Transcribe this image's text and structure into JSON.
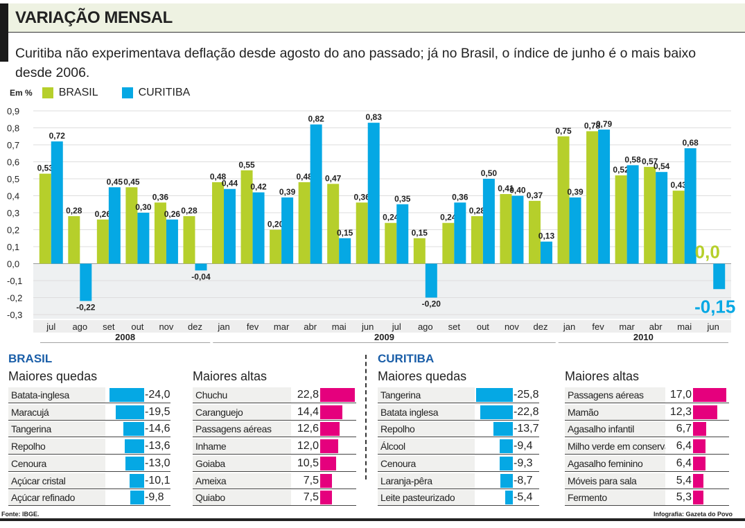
{
  "header": {
    "title": "VARIAÇÃO MENSAL",
    "subtitle": "Curitiba não experimentava deflação desde agosto do ano passado; já no Brasil, o índice de junho é o mais baixo desde 2006."
  },
  "colors": {
    "brasil": "#b6cf2b",
    "curitiba": "#05a8e4",
    "altas": "#e5007d",
    "negative_bg": "#eef0f1",
    "title_blue": "#1a5ea8"
  },
  "chart_data": {
    "type": "bar",
    "unit": "Em %",
    "ylim": [
      -0.3,
      0.9
    ],
    "yticks": [
      "0,9",
      "0,8",
      "0,7",
      "0,6",
      "0,5",
      "0,4",
      "0,3",
      "0,2",
      "0,1",
      "0,0",
      "-0,1",
      "-0,2",
      "-0,3"
    ],
    "ytick_values": [
      0.9,
      0.8,
      0.7,
      0.6,
      0.5,
      0.4,
      0.3,
      0.2,
      0.1,
      0.0,
      -0.1,
      -0.2,
      -0.3
    ],
    "categories": [
      "jul",
      "ago",
      "set",
      "out",
      "nov",
      "dez",
      "jan",
      "fev",
      "mar",
      "abr",
      "mai",
      "jun",
      "jul",
      "ago",
      "set",
      "out",
      "nov",
      "dez",
      "jan",
      "fev",
      "mar",
      "abr",
      "mai",
      "jun"
    ],
    "years": [
      {
        "label": "2008",
        "months": 6
      },
      {
        "label": "2009",
        "months": 12
      },
      {
        "label": "2010",
        "months": 6
      }
    ],
    "legend": [
      "BRASIL",
      "CURITIBA"
    ],
    "series": [
      {
        "name": "BRASIL",
        "values": [
          0.53,
          0.28,
          0.26,
          0.45,
          0.36,
          0.28,
          0.48,
          0.55,
          0.2,
          0.48,
          0.47,
          0.36,
          0.24,
          0.15,
          0.24,
          0.28,
          0.41,
          0.37,
          0.75,
          0.78,
          0.52,
          0.57,
          0.43,
          0.0
        ],
        "labels": [
          "0,53",
          "0,28",
          "0,26",
          "0,45",
          "0,36",
          "0,28",
          "0,48",
          "0,55",
          "0,20",
          "0,48",
          "0,47",
          "0,36",
          "0,24",
          "0,15",
          "0,24",
          "0,28",
          "0,41",
          "0,37",
          "0,75",
          "0,78",
          "0,52",
          "0,57",
          "0,43",
          "0,0"
        ]
      },
      {
        "name": "CURITIBA",
        "values": [
          0.72,
          -0.22,
          0.45,
          0.3,
          0.26,
          -0.04,
          0.44,
          0.42,
          0.39,
          0.82,
          0.15,
          0.83,
          0.35,
          -0.2,
          0.36,
          0.5,
          0.4,
          0.13,
          0.39,
          0.79,
          0.58,
          0.54,
          0.68,
          -0.15
        ],
        "labels": [
          "0,72",
          "-0,22",
          "0,45",
          "0,30",
          "0,26",
          "-0,04",
          "0,44",
          "0,42",
          "0,39",
          "0,82",
          "0,15",
          "0,83",
          "0,35",
          "-0,20",
          "0,36",
          "0,50",
          "0,40",
          "0,13",
          "0,39",
          "0,79",
          "0,58",
          "0,54",
          "0,68",
          "-0,15"
        ]
      }
    ]
  },
  "tables": {
    "brasil": {
      "title": "BRASIL",
      "quedas": {
        "title": "Maiores quedas",
        "items": [
          {
            "name": "Batata-inglesa",
            "value": "-24,0",
            "v": 24.0
          },
          {
            "name": "Maracujá",
            "value": "-19,5",
            "v": 19.5
          },
          {
            "name": "Tangerina",
            "value": "-14,6",
            "v": 14.6
          },
          {
            "name": "Repolho",
            "value": "-13,6",
            "v": 13.6
          },
          {
            "name": "Cenoura",
            "value": "-13,0",
            "v": 13.0
          },
          {
            "name": "Açúcar cristal",
            "value": "-10,1",
            "v": 10.1
          },
          {
            "name": "Açúcar refinado",
            "value": "-9,8",
            "v": 9.8
          }
        ]
      },
      "altas": {
        "title": "Maiores altas",
        "items": [
          {
            "name": "Chuchu",
            "value": "22,8",
            "v": 22.8
          },
          {
            "name": "Caranguejo",
            "value": "14,4",
            "v": 14.4
          },
          {
            "name": "Passagens aéreas",
            "value": "12,6",
            "v": 12.6
          },
          {
            "name": "Inhame",
            "value": "12,0",
            "v": 12.0
          },
          {
            "name": "Goiaba",
            "value": "10,5",
            "v": 10.5
          },
          {
            "name": "Ameixa",
            "value": "7,5",
            "v": 7.5
          },
          {
            "name": "Quiabo",
            "value": "7,5",
            "v": 7.5
          }
        ]
      }
    },
    "curitiba": {
      "title": "CURITIBA",
      "quedas": {
        "title": "Maiores quedas",
        "items": [
          {
            "name": "Tangerina",
            "value": "-25,8",
            "v": 25.8
          },
          {
            "name": "Batata inglesa",
            "value": "-22,8",
            "v": 22.8
          },
          {
            "name": "Repolho",
            "value": "-13,7",
            "v": 13.7
          },
          {
            "name": "Álcool",
            "value": "-9,4",
            "v": 9.4
          },
          {
            "name": "Cenoura",
            "value": "-9,3",
            "v": 9.3
          },
          {
            "name": "Laranja-pêra",
            "value": "-8,7",
            "v": 8.7
          },
          {
            "name": "Leite pasteurizado",
            "value": "-5,4",
            "v": 5.4
          }
        ]
      },
      "altas": {
        "title": "Maiores altas",
        "items": [
          {
            "name": "Passagens aéreas",
            "value": "17,0",
            "v": 17.0
          },
          {
            "name": "Mamão",
            "value": "12,3",
            "v": 12.3
          },
          {
            "name": "Agasalho infantil",
            "value": "6,7",
            "v": 6.7
          },
          {
            "name": "Milho verde em conserva",
            "value": "6,4",
            "v": 6.4
          },
          {
            "name": "Agasalho feminino",
            "value": "6,4",
            "v": 6.4
          },
          {
            "name": "Móveis para sala",
            "value": "5,4",
            "v": 5.4
          },
          {
            "name": "Fermento",
            "value": "5,3",
            "v": 5.3
          }
        ]
      }
    }
  },
  "footer": {
    "source": "Fonte: IBGE.",
    "credit": "Infografia: Gazeta do Povo"
  }
}
